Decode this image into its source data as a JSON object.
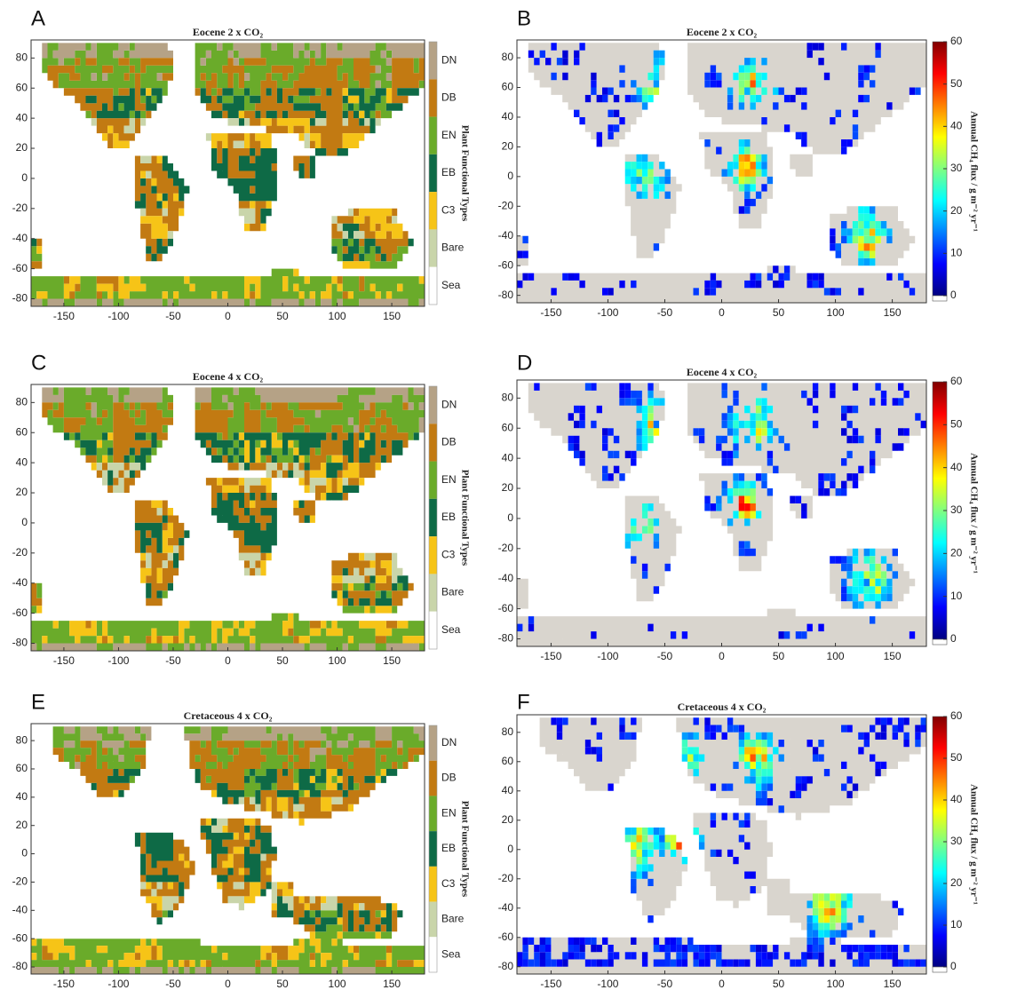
{
  "chart_data": [
    {
      "type": "map",
      "panel_label": "A",
      "title": "Eocene 2 x CO₂",
      "xlim": [
        -180,
        180
      ],
      "ylim": [
        -85,
        92
      ],
      "xticks": [
        -150,
        -100,
        -50,
        0,
        50,
        100,
        150
      ],
      "yticks": [
        -80,
        -60,
        -40,
        -20,
        0,
        20,
        40,
        60,
        80
      ],
      "legend": {
        "title": "Plant Functional Types",
        "categories": [
          "DN",
          "DB",
          "EN",
          "EB",
          "C3",
          "Bare",
          "Sea"
        ],
        "colors": [
          "#b5a286",
          "#c27a12",
          "#6aab2a",
          "#0e6a46",
          "#f6c417",
          "#c9d5aa",
          "#ffffff"
        ]
      }
    },
    {
      "type": "map",
      "panel_label": "B",
      "title": "Eocene 2 x CO₂",
      "xlim": [
        -180,
        180
      ],
      "ylim": [
        -85,
        92
      ],
      "xticks": [
        -150,
        -100,
        -50,
        0,
        50,
        100,
        150
      ],
      "yticks": [
        -80,
        -60,
        -40,
        -20,
        0,
        20,
        40,
        60,
        80
      ],
      "colorbar": {
        "label": "Annual CH₄ flux / g m⁻² yr⁻¹",
        "clim": [
          0,
          60
        ],
        "ticks": [
          0,
          10,
          20,
          30,
          40,
          50,
          60
        ]
      }
    },
    {
      "type": "map",
      "panel_label": "C",
      "title": "Eocene 4 x CO₂",
      "xlim": [
        -180,
        180
      ],
      "ylim": [
        -85,
        92
      ],
      "xticks": [
        -150,
        -100,
        -50,
        0,
        50,
        100,
        150
      ],
      "yticks": [
        -80,
        -60,
        -40,
        -20,
        0,
        20,
        40,
        60,
        80
      ],
      "legend": {
        "title": "Plant Functional Types",
        "categories": [
          "DN",
          "DB",
          "EN",
          "EB",
          "C3",
          "Bare",
          "Sea"
        ],
        "colors": [
          "#b5a286",
          "#c27a12",
          "#6aab2a",
          "#0e6a46",
          "#f6c417",
          "#c9d5aa",
          "#ffffff"
        ]
      }
    },
    {
      "type": "map",
      "panel_label": "D",
      "title": "Eocene 4 x CO₂",
      "xlim": [
        -180,
        180
      ],
      "ylim": [
        -85,
        92
      ],
      "xticks": [
        -150,
        -100,
        -50,
        0,
        50,
        100,
        150
      ],
      "yticks": [
        -80,
        -60,
        -40,
        -20,
        0,
        20,
        40,
        60,
        80
      ],
      "colorbar": {
        "label": "Annual CH₄ flux / g m⁻² yr⁻¹",
        "clim": [
          0,
          60
        ],
        "ticks": [
          0,
          10,
          20,
          30,
          40,
          50,
          60
        ]
      }
    },
    {
      "type": "map",
      "panel_label": "E",
      "title": "Cretaceous 4 x CO₂",
      "xlim": [
        -180,
        180
      ],
      "ylim": [
        -85,
        92
      ],
      "xticks": [
        -150,
        -100,
        -50,
        0,
        50,
        100,
        150
      ],
      "yticks": [
        -80,
        -60,
        -40,
        -20,
        0,
        20,
        40,
        60,
        80
      ],
      "legend": {
        "title": "Plant Functional Types",
        "categories": [
          "DN",
          "DB",
          "EN",
          "EB",
          "C3",
          "Bare",
          "Sea"
        ],
        "colors": [
          "#b5a286",
          "#c27a12",
          "#6aab2a",
          "#0e6a46",
          "#f6c417",
          "#c9d5aa",
          "#ffffff"
        ]
      }
    },
    {
      "type": "map",
      "panel_label": "F",
      "title": "Cretaceous 4 x CO₂",
      "xlim": [
        -180,
        180
      ],
      "ylim": [
        -85,
        92
      ],
      "xticks": [
        -150,
        -100,
        -50,
        0,
        50,
        100,
        150
      ],
      "yticks": [
        -80,
        -60,
        -40,
        -20,
        0,
        20,
        40,
        60,
        80
      ],
      "colorbar": {
        "label": "Annual CH₄ flux / g m⁻² yr⁻¹",
        "clim": [
          0,
          60
        ],
        "ticks": [
          0,
          10,
          20,
          30,
          40,
          50,
          60
        ]
      }
    }
  ]
}
